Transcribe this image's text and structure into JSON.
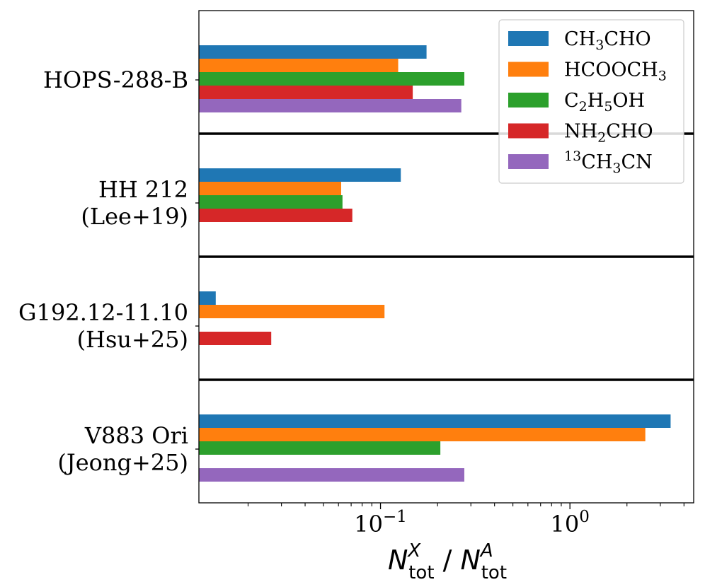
{
  "chart_data": {
    "type": "bar",
    "orientation": "horizontal",
    "xscale": "log",
    "xlim": [
      0.011,
      4.5
    ],
    "categories": [
      {
        "lines": [
          "HOPS-288-B"
        ]
      },
      {
        "lines": [
          "HH 212",
          "(Lee+19)"
        ]
      },
      {
        "lines": [
          "G192.12-11.10",
          "(Hsu+25)"
        ]
      },
      {
        "lines": [
          "V883 Ori",
          "(Jeong+25)"
        ]
      }
    ],
    "series": [
      {
        "name": "CH3CHO",
        "label_parts": [
          [
            "CH",
            false
          ],
          [
            "3",
            true
          ],
          [
            "CHO",
            false
          ]
        ],
        "color": "#1f77b4",
        "values": [
          0.175,
          0.128,
          0.0135,
          3.4
        ]
      },
      {
        "name": "HCOOCH3",
        "label_parts": [
          [
            "HCOOCH",
            false
          ],
          [
            "3",
            true
          ]
        ],
        "color": "#ff7f0e",
        "values": [
          0.124,
          0.062,
          0.105,
          2.5
        ]
      },
      {
        "name": "C2H5OH",
        "label_parts": [
          [
            "C",
            false
          ],
          [
            "2",
            true
          ],
          [
            "H",
            false
          ],
          [
            "5",
            true
          ],
          [
            "OH",
            false
          ]
        ],
        "color": "#2ca02c",
        "values": [
          0.277,
          0.063,
          null,
          0.207
        ]
      },
      {
        "name": "NH2CHO",
        "label_parts": [
          [
            "NH",
            false
          ],
          [
            "2",
            true
          ],
          [
            "CHO",
            false
          ]
        ],
        "color": "#d62728",
        "values": [
          0.148,
          0.071,
          0.0265,
          null
        ]
      },
      {
        "name": "13CH3CN",
        "label_parts": [
          [
            "13",
            "sup"
          ],
          [
            "CH",
            false
          ],
          [
            "3",
            true
          ],
          [
            "CN",
            false
          ]
        ],
        "color": "#9467bd",
        "values": [
          0.267,
          null,
          null,
          0.277
        ]
      }
    ],
    "xticks": [
      {
        "value": 0.1,
        "base": "10",
        "exp": "−1"
      },
      {
        "value": 1,
        "base": "10",
        "exp": "0"
      }
    ],
    "xlabel": {
      "n1": "N",
      "sup1": "X",
      "sub1": "tot",
      "slash": "/",
      "n2": "N",
      "sup2": "A",
      "sub2": "tot"
    },
    "legend_position": "top-right"
  }
}
